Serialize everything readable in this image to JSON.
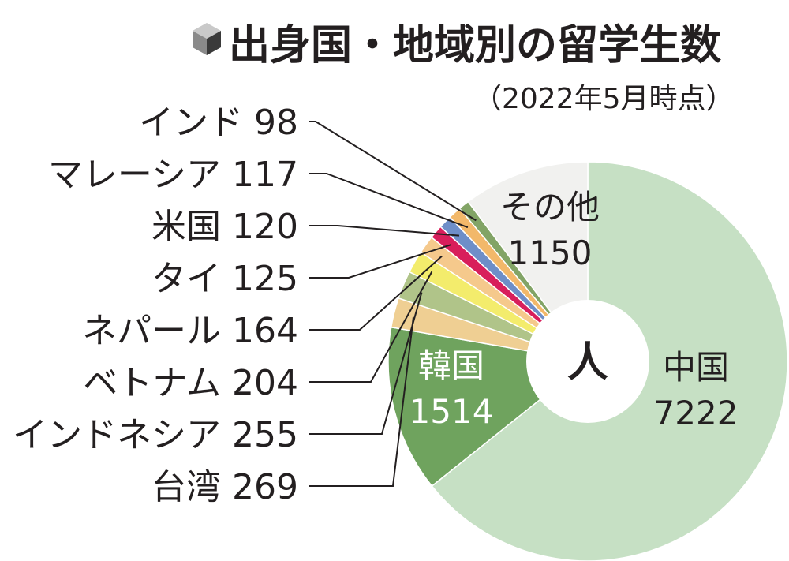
{
  "chart_data": {
    "type": "pie",
    "title": "出身国・地域別の留学生数",
    "subtitle": "（2022年5月時点）",
    "center_label": "人",
    "slices": [
      {
        "label": "中国",
        "value": 7222,
        "value_text": "7222",
        "color": "#c6e0c4"
      },
      {
        "label": "韓国",
        "value": 1514,
        "value_text": "1514",
        "color": "#6fa35e"
      },
      {
        "label": "台湾",
        "value": 269,
        "value_text": "269",
        "color": "#efcf93"
      },
      {
        "label": "インドネシア",
        "value": 255,
        "value_text": "255",
        "color": "#b0c489"
      },
      {
        "label": "ベトナム",
        "value": 204,
        "value_text": "204",
        "color": "#f3ec6c"
      },
      {
        "label": "ネパール",
        "value": 164,
        "value_text": "164",
        "color": "#f5c98c"
      },
      {
        "label": "タイ",
        "value": 125,
        "value_text": "125",
        "color": "#d81e5b"
      },
      {
        "label": "米国",
        "value": 120,
        "value_text": "120",
        "color": "#6e8ec8"
      },
      {
        "label": "マレーシア",
        "value": 117,
        "value_text": "117",
        "color": "#f2b86a"
      },
      {
        "label": "インド",
        "value": 98,
        "value_text": "98",
        "color": "#82a466"
      },
      {
        "label": "その他",
        "value": 1150,
        "value_text": "1150",
        "color": "#f1f1ef"
      }
    ]
  }
}
